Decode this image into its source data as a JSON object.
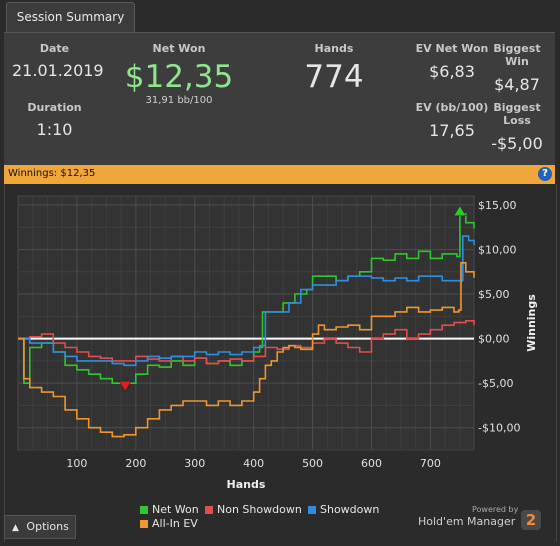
{
  "tab": {
    "label": "Session Summary"
  },
  "summary": {
    "date_label": "Date",
    "date_value": "21.01.2019",
    "duration_label": "Duration",
    "duration_value": "1:10",
    "net_won_label": "Net Won",
    "net_won_value": "$12,35",
    "net_won_rate": "31,91 bb/100",
    "hands_label": "Hands",
    "hands_value": "774",
    "ev_net_won_label": "EV Net Won",
    "ev_net_won_value": "$6,83",
    "biggest_win_label": "Biggest Win",
    "biggest_win_value": "$4,87",
    "ev_bb_label": "EV (bb/100)",
    "ev_bb_value": "17,65",
    "biggest_loss_label": "Biggest Loss",
    "biggest_loss_value": "-$5,00"
  },
  "winnings_bar": {
    "text": "Winnings:  $12,35",
    "help": "?"
  },
  "options": {
    "label": "Options",
    "icon": "chevron-up-icon"
  },
  "branding": {
    "powered": "Powered by",
    "name": "Hold'em Manager",
    "logo": "2"
  },
  "colors": {
    "net_won": "#2ec72e",
    "non_showdown": "#e24d4d",
    "showdown": "#2e8fe0",
    "allin_ev": "#f0962e",
    "zero_line": "#ffffff"
  },
  "chart_data": {
    "type": "line",
    "xlabel": "Hands",
    "ylabel": "Winnings",
    "xlim": [
      0,
      774
    ],
    "ylim": [
      -12.5,
      16
    ],
    "x_ticks": [
      100,
      200,
      300,
      400,
      500,
      600,
      700
    ],
    "y_ticks": [
      -10,
      -5,
      0,
      5,
      10,
      15
    ],
    "y_tick_labels": [
      "-$10,00",
      "-$5,00",
      "$0,00",
      "$5,00",
      "$10,00",
      "$15,00"
    ],
    "grid": true,
    "legend_position": "bottom",
    "series": [
      {
        "name": "Net Won",
        "color": "#2ec72e",
        "points": [
          [
            0,
            0
          ],
          [
            10,
            -5
          ],
          [
            20,
            -1
          ],
          [
            40,
            -0.5
          ],
          [
            60,
            -1.5
          ],
          [
            80,
            -3
          ],
          [
            100,
            -3.5
          ],
          [
            120,
            -4
          ],
          [
            140,
            -4.5
          ],
          [
            160,
            -5
          ],
          [
            180,
            -5
          ],
          [
            200,
            -4
          ],
          [
            220,
            -3
          ],
          [
            240,
            -3.2
          ],
          [
            260,
            -2.5
          ],
          [
            280,
            -3
          ],
          [
            300,
            -2.2
          ],
          [
            320,
            -2.8
          ],
          [
            340,
            -2.5
          ],
          [
            360,
            -3
          ],
          [
            380,
            -2.5
          ],
          [
            400,
            -1.5
          ],
          [
            410,
            -1
          ],
          [
            415,
            3
          ],
          [
            430,
            3
          ],
          [
            450,
            4
          ],
          [
            470,
            5
          ],
          [
            490,
            5.5
          ],
          [
            500,
            7
          ],
          [
            520,
            7
          ],
          [
            540,
            6.5
          ],
          [
            560,
            7
          ],
          [
            580,
            7.5
          ],
          [
            600,
            9
          ],
          [
            620,
            8.8
          ],
          [
            640,
            9.5
          ],
          [
            660,
            9
          ],
          [
            680,
            9.8
          ],
          [
            700,
            9
          ],
          [
            720,
            9.5
          ],
          [
            745,
            9.2
          ],
          [
            750,
            14
          ],
          [
            760,
            13
          ],
          [
            774,
            12.35
          ]
        ]
      },
      {
        "name": "Non Showdown",
        "color": "#e24d4d",
        "points": [
          [
            0,
            0
          ],
          [
            20,
            0.2
          ],
          [
            40,
            0.5
          ],
          [
            60,
            -0.5
          ],
          [
            80,
            -1
          ],
          [
            100,
            -1.5
          ],
          [
            120,
            -2
          ],
          [
            140,
            -2.2
          ],
          [
            160,
            -2.5
          ],
          [
            180,
            -2.5
          ],
          [
            200,
            -2
          ],
          [
            220,
            -2.3
          ],
          [
            240,
            -2.5
          ],
          [
            260,
            -2
          ],
          [
            280,
            -2.5
          ],
          [
            300,
            -2.2
          ],
          [
            320,
            -2.8
          ],
          [
            340,
            -2.5
          ],
          [
            360,
            -2.3
          ],
          [
            380,
            -2.5
          ],
          [
            400,
            -2
          ],
          [
            420,
            -1
          ],
          [
            440,
            -1.2
          ],
          [
            460,
            -0.8
          ],
          [
            480,
            -1
          ],
          [
            500,
            -0.5
          ],
          [
            520,
            0
          ],
          [
            540,
            -0.5
          ],
          [
            560,
            -1
          ],
          [
            580,
            -1.5
          ],
          [
            600,
            0
          ],
          [
            620,
            0.5
          ],
          [
            640,
            1
          ],
          [
            660,
            0
          ],
          [
            680,
            0.5
          ],
          [
            700,
            1
          ],
          [
            720,
            1.5
          ],
          [
            740,
            1.8
          ],
          [
            760,
            2
          ],
          [
            774,
            1.5
          ]
        ]
      },
      {
        "name": "Showdown",
        "color": "#2e8fe0",
        "points": [
          [
            0,
            0
          ],
          [
            20,
            -0.5
          ],
          [
            40,
            -0.5
          ],
          [
            60,
            -1.5
          ],
          [
            80,
            -2
          ],
          [
            100,
            -2.5
          ],
          [
            120,
            -2.5
          ],
          [
            140,
            -2.5
          ],
          [
            160,
            -2.8
          ],
          [
            180,
            -3
          ],
          [
            200,
            -2.5
          ],
          [
            220,
            -2
          ],
          [
            240,
            -2.2
          ],
          [
            260,
            -2
          ],
          [
            280,
            -2
          ],
          [
            300,
            -1.5
          ],
          [
            320,
            -1.8
          ],
          [
            340,
            -1.5
          ],
          [
            360,
            -1.8
          ],
          [
            380,
            -1.5
          ],
          [
            400,
            -1
          ],
          [
            410,
            -0.8
          ],
          [
            420,
            3
          ],
          [
            440,
            3
          ],
          [
            460,
            4
          ],
          [
            480,
            5.5
          ],
          [
            500,
            6
          ],
          [
            520,
            6
          ],
          [
            540,
            6.5
          ],
          [
            560,
            7
          ],
          [
            580,
            7
          ],
          [
            600,
            6.8
          ],
          [
            620,
            6.5
          ],
          [
            640,
            6.8
          ],
          [
            660,
            6.5
          ],
          [
            680,
            7
          ],
          [
            700,
            7
          ],
          [
            720,
            6.5
          ],
          [
            745,
            6.5
          ],
          [
            755,
            11.5
          ],
          [
            765,
            11
          ],
          [
            774,
            10.5
          ]
        ]
      },
      {
        "name": "All-In EV",
        "color": "#f0962e",
        "points": [
          [
            0,
            0
          ],
          [
            10,
            -4.5
          ],
          [
            20,
            -5.5
          ],
          [
            40,
            -6
          ],
          [
            60,
            -6.5
          ],
          [
            80,
            -8
          ],
          [
            100,
            -9
          ],
          [
            120,
            -10
          ],
          [
            140,
            -10.5
          ],
          [
            160,
            -11
          ],
          [
            180,
            -10.8
          ],
          [
            200,
            -10
          ],
          [
            220,
            -9
          ],
          [
            240,
            -8
          ],
          [
            260,
            -7.5
          ],
          [
            280,
            -7
          ],
          [
            300,
            -7
          ],
          [
            320,
            -7.5
          ],
          [
            340,
            -7
          ],
          [
            360,
            -7.5
          ],
          [
            380,
            -7
          ],
          [
            400,
            -6
          ],
          [
            410,
            -4.5
          ],
          [
            420,
            -3
          ],
          [
            430,
            -2.5
          ],
          [
            440,
            -1.5
          ],
          [
            450,
            -1
          ],
          [
            460,
            -0.8
          ],
          [
            470,
            -1
          ],
          [
            480,
            -1.2
          ],
          [
            500,
            0.5
          ],
          [
            510,
            1.5
          ],
          [
            520,
            1
          ],
          [
            540,
            1.3
          ],
          [
            560,
            1.5
          ],
          [
            580,
            1
          ],
          [
            600,
            2.5
          ],
          [
            620,
            2.5
          ],
          [
            640,
            3
          ],
          [
            660,
            3.5
          ],
          [
            680,
            3
          ],
          [
            700,
            3.2
          ],
          [
            720,
            3.5
          ],
          [
            740,
            3
          ],
          [
            748,
            3.2
          ],
          [
            752,
            8.5
          ],
          [
            760,
            7.5
          ],
          [
            774,
            6.83
          ]
        ]
      }
    ],
    "markers": [
      {
        "type": "peak",
        "x": 750,
        "y": 14,
        "color": "#2ec72e"
      },
      {
        "type": "trough",
        "x": 182,
        "y": -5,
        "color": "#e02020"
      }
    ]
  }
}
